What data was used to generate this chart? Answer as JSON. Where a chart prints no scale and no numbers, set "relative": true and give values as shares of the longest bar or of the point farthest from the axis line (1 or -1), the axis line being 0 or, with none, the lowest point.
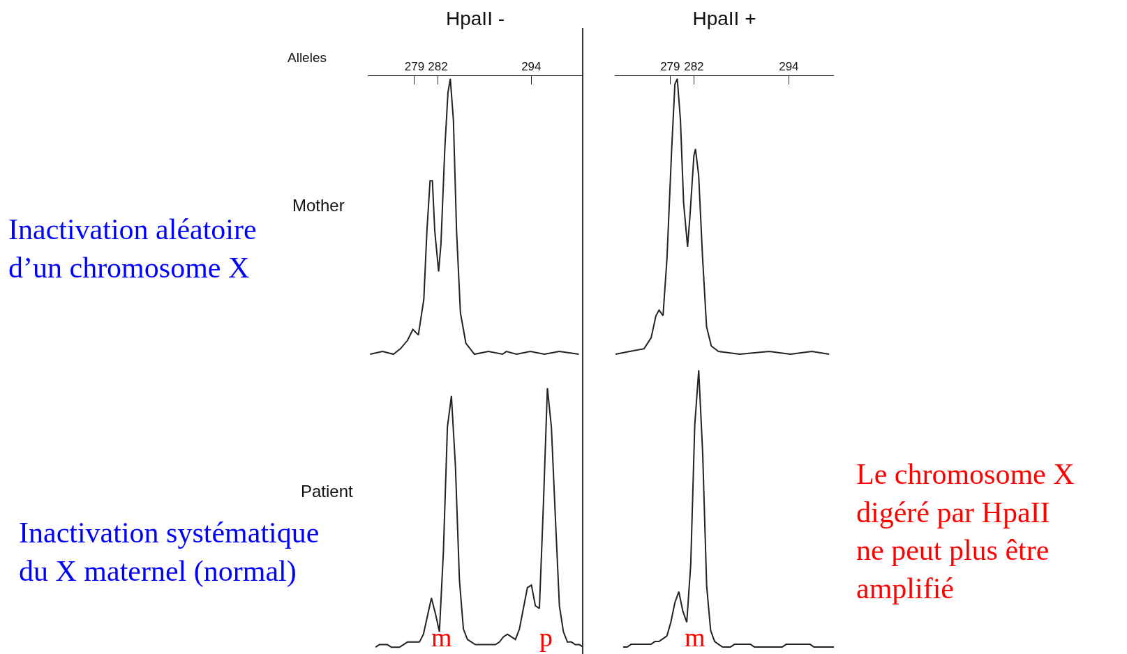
{
  "chart_data": [
    {
      "type": "line",
      "relative": true,
      "title": "HpaII -",
      "xlabel": "Alleles",
      "ylabel": "Mother",
      "xlim": [
        273,
        300.6
      ],
      "xticks": [
        279,
        282,
        294
      ],
      "grid": false,
      "marker": "none",
      "line_style": "solid",
      "annotations": [
        "Inactivation aléatoire\nd’un chromosome X"
      ],
      "series": [
        {
          "color": "#222222",
          "x": [
            273.3,
            274.9,
            276.3,
            277.2,
            278.1,
            278.8,
            279.5,
            280.2,
            280.6,
            281.0,
            281.3,
            281.6,
            282.1,
            282.4,
            282.9,
            283.3,
            283.6,
            284.0,
            284.4,
            284.9,
            285.6,
            286.7,
            288.5,
            290.3,
            290.8,
            292.1,
            293.9,
            295.7,
            297.6,
            300.1
          ],
          "values": [
            0.0,
            0.01,
            0.0,
            0.02,
            0.05,
            0.09,
            0.07,
            0.2,
            0.45,
            0.63,
            0.63,
            0.45,
            0.3,
            0.4,
            0.75,
            0.95,
            1.0,
            0.85,
            0.45,
            0.15,
            0.04,
            0.0,
            0.01,
            0.0,
            0.01,
            0.0,
            0.01,
            0.0,
            0.01,
            0.0
          ]
        }
      ]
    },
    {
      "type": "line",
      "relative": true,
      "title": "HpaII +",
      "xlim": [
        272,
        299.7
      ],
      "xticks": [
        279,
        282,
        294
      ],
      "grid": false,
      "marker": "none",
      "line_style": "solid",
      "series": [
        {
          "color": "#222222",
          "x": [
            272.1,
            273.9,
            275.7,
            276.6,
            277.2,
            277.6,
            278.1,
            278.6,
            279.2,
            279.6,
            279.9,
            280.3,
            280.7,
            281.2,
            281.5,
            282.0,
            282.2,
            282.6,
            283.1,
            283.6,
            284.2,
            285.1,
            287.8,
            291.5,
            294.2,
            296.9,
            299.1
          ],
          "values": [
            0.0,
            0.01,
            0.02,
            0.06,
            0.14,
            0.16,
            0.14,
            0.35,
            0.75,
            0.98,
            1.0,
            0.85,
            0.55,
            0.39,
            0.5,
            0.72,
            0.745,
            0.65,
            0.35,
            0.1,
            0.03,
            0.01,
            0.0,
            0.01,
            0.0,
            0.01,
            0.0
          ]
        }
      ]
    },
    {
      "type": "line",
      "relative": true,
      "ylabel": "Patient",
      "grid": false,
      "marker": "none",
      "line_style": "solid",
      "annotations": [
        "Inactivation systématique\ndu X maternel (normal)",
        "m",
        "p"
      ],
      "categories": [
        null,
        null,
        null,
        null,
        null,
        null,
        null,
        null,
        null,
        null,
        null,
        null,
        null,
        null,
        null,
        null,
        null,
        null,
        null,
        null,
        null,
        null,
        null,
        null,
        null,
        null,
        null,
        null,
        null,
        null,
        null,
        null,
        null,
        null,
        null,
        null,
        null,
        null,
        null,
        null,
        null,
        null,
        null,
        null,
        null,
        null,
        null,
        null,
        null,
        null,
        null,
        null,
        null
      ],
      "series": [
        {
          "color": "#222222",
          "values": [
            0.0,
            0.01,
            0.01,
            0.01,
            0.0,
            0.0,
            0.0,
            0.01,
            0.02,
            0.02,
            0.02,
            0.02,
            0.05,
            0.12,
            0.19,
            0.13,
            0.06,
            0.37,
            0.85,
            0.97,
            0.7,
            0.26,
            0.07,
            0.03,
            0.02,
            0.01,
            0.01,
            0.01,
            0.01,
            0.01,
            0.01,
            0.02,
            0.04,
            0.05,
            0.04,
            0.03,
            0.07,
            0.15,
            0.23,
            0.24,
            0.16,
            0.15,
            0.55,
            1.0,
            0.85,
            0.5,
            0.16,
            0.06,
            0.02,
            0.02,
            0.01,
            0.01,
            0.0
          ]
        }
      ]
    },
    {
      "type": "line",
      "relative": true,
      "grid": false,
      "marker": "none",
      "line_style": "solid",
      "annotations": [
        "Le chromosome X\ndigéré par HpaII\nne peut plus être\namplifié",
        "m"
      ],
      "categories": [
        null,
        null,
        null,
        null,
        null,
        null,
        null,
        null,
        null,
        null,
        null,
        null,
        null,
        null,
        null,
        null,
        null,
        null,
        null,
        null,
        null,
        null,
        null,
        null,
        null,
        null,
        null,
        null,
        null,
        null,
        null,
        null,
        null,
        null,
        null,
        null,
        null,
        null,
        null,
        null,
        null,
        null,
        null,
        null,
        null,
        null,
        null,
        null,
        null,
        null,
        null,
        null,
        null,
        null
      ],
      "series": [
        {
          "color": "#222222",
          "values": [
            0.0,
            0.0,
            0.01,
            0.01,
            0.01,
            0.01,
            0.01,
            0.01,
            0.02,
            0.02,
            0.03,
            0.04,
            0.09,
            0.16,
            0.2,
            0.13,
            0.09,
            0.3,
            0.8,
            1.0,
            0.7,
            0.22,
            0.06,
            0.02,
            0.01,
            0.0,
            0.0,
            0.0,
            0.01,
            0.01,
            0.01,
            0.01,
            0.01,
            0.0,
            0.0,
            0.0,
            0.0,
            0.0,
            0.0,
            0.0,
            0.0,
            0.01,
            0.01,
            0.01,
            0.01,
            0.01,
            0.01,
            0.01,
            0.0,
            0.0,
            0.0,
            0.0,
            0.0,
            0.0
          ]
        }
      ]
    }
  ]
}
